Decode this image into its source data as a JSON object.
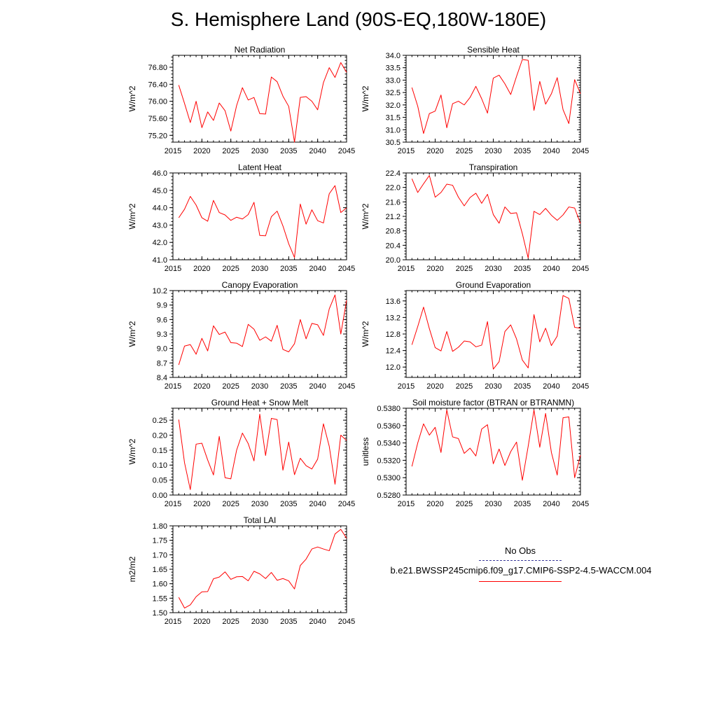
{
  "title": "S. Hemisphere Land (90S-EQ,180W-180E)",
  "legend": {
    "obs_label": "No Obs",
    "case_label": "b.e21.BWSSP245cmip6.f09_g17.CMIP6-SSP2-4.5-WACCM.004",
    "case_color": "#ff0000",
    "obs_color": "#3b3b9b"
  },
  "chart_data": [
    {
      "type": "line",
      "title": "Net Radiation",
      "ylabel": "W/m^2",
      "xlim": [
        2015,
        2045
      ],
      "ylim": [
        75.04,
        77.08
      ],
      "xticks": [
        "2015",
        "2020",
        "2025",
        "2030",
        "2035",
        "2040",
        "2045"
      ],
      "yticks": [
        "75.20",
        "75.60",
        "76.00",
        "76.40",
        "76.80"
      ],
      "x": [
        2016,
        2017,
        2018,
        2019,
        2020,
        2021,
        2022,
        2023,
        2024,
        2025,
        2026,
        2027,
        2028,
        2029,
        2030,
        2031,
        2032,
        2033,
        2034,
        2035,
        2036,
        2037,
        2038,
        2039,
        2040,
        2041,
        2042,
        2043,
        2044,
        2045
      ],
      "series": [
        {
          "color": "#ff0000",
          "values": [
            76.38,
            75.95,
            75.5,
            76.0,
            75.38,
            75.75,
            75.55,
            75.96,
            75.78,
            75.3,
            75.9,
            76.32,
            76.03,
            76.09,
            75.71,
            75.7,
            76.57,
            76.46,
            76.12,
            75.88,
            75.04,
            76.09,
            76.11,
            76.0,
            75.8,
            76.44,
            76.79,
            76.56,
            76.91,
            76.68
          ]
        }
      ]
    },
    {
      "type": "line",
      "title": "Sensible Heat",
      "ylabel": "W/m^2",
      "xlim": [
        2015,
        2045
      ],
      "ylim": [
        30.5,
        34.0
      ],
      "xticks": [
        "2015",
        "2020",
        "2025",
        "2030",
        "2035",
        "2040",
        "2045"
      ],
      "yticks": [
        "30.5",
        "31.0",
        "31.5",
        "32.0",
        "32.5",
        "33.0",
        "33.5",
        "34.0"
      ],
      "x": [
        2016,
        2017,
        2018,
        2019,
        2020,
        2021,
        2022,
        2023,
        2024,
        2025,
        2026,
        2027,
        2028,
        2029,
        2030,
        2031,
        2032,
        2033,
        2034,
        2035,
        2036,
        2037,
        2038,
        2039,
        2040,
        2041,
        2042,
        2043,
        2044,
        2045
      ],
      "series": [
        {
          "color": "#ff0000",
          "values": [
            32.7,
            31.95,
            30.85,
            31.65,
            31.75,
            32.4,
            31.08,
            32.05,
            32.15,
            32.0,
            32.3,
            32.75,
            32.25,
            31.67,
            33.08,
            33.2,
            32.85,
            32.42,
            33.15,
            33.83,
            33.8,
            31.78,
            32.95,
            32.03,
            32.45,
            33.1,
            31.81,
            31.25,
            33.02,
            32.45
          ]
        }
      ]
    },
    {
      "type": "line",
      "title": "Latent Heat",
      "ylabel": "W/m^2",
      "xlim": [
        2015,
        2045
      ],
      "ylim": [
        41.0,
        46.0
      ],
      "xticks": [
        "2015",
        "2020",
        "2025",
        "2030",
        "2035",
        "2040",
        "2045"
      ],
      "yticks": [
        "41.0",
        "42.0",
        "43.0",
        "44.0",
        "45.0",
        "46.0"
      ],
      "x": [
        2016,
        2017,
        2018,
        2019,
        2020,
        2021,
        2022,
        2023,
        2024,
        2025,
        2026,
        2027,
        2028,
        2029,
        2030,
        2031,
        2032,
        2033,
        2034,
        2035,
        2036,
        2037,
        2038,
        2039,
        2040,
        2041,
        2042,
        2043,
        2044,
        2045
      ],
      "series": [
        {
          "color": "#ff0000",
          "values": [
            43.42,
            43.91,
            44.65,
            44.15,
            43.42,
            43.22,
            44.42,
            43.72,
            43.58,
            43.27,
            43.45,
            43.35,
            43.6,
            44.31,
            42.4,
            42.38,
            43.48,
            43.8,
            42.95,
            41.92,
            41.13,
            44.21,
            43.05,
            43.88,
            43.25,
            43.12,
            44.8,
            45.27,
            43.72,
            43.99
          ]
        }
      ]
    },
    {
      "type": "line",
      "title": "Transpiration",
      "ylabel": "W/m^2",
      "xlim": [
        2015,
        2045
      ],
      "ylim": [
        20.0,
        22.4
      ],
      "xticks": [
        "2015",
        "2020",
        "2025",
        "2030",
        "2035",
        "2040",
        "2045"
      ],
      "yticks": [
        "20.0",
        "20.4",
        "20.8",
        "21.2",
        "21.6",
        "22.0",
        "22.4"
      ],
      "x": [
        2016,
        2017,
        2018,
        2019,
        2020,
        2021,
        2022,
        2023,
        2024,
        2025,
        2026,
        2027,
        2028,
        2029,
        2030,
        2031,
        2032,
        2033,
        2034,
        2035,
        2036,
        2037,
        2038,
        2039,
        2040,
        2041,
        2042,
        2043,
        2044,
        2045
      ],
      "series": [
        {
          "color": "#ff0000",
          "values": [
            22.24,
            21.86,
            22.1,
            22.33,
            21.73,
            21.86,
            22.09,
            22.06,
            21.73,
            21.49,
            21.72,
            21.84,
            21.56,
            21.81,
            21.25,
            21.01,
            21.46,
            21.28,
            21.3,
            20.72,
            20.05,
            21.34,
            21.25,
            21.42,
            21.23,
            21.09,
            21.24,
            21.46,
            21.43,
            21.0
          ]
        }
      ]
    },
    {
      "type": "line",
      "title": "Canopy Evaporation",
      "ylabel": "W/m^2",
      "xlim": [
        2015,
        2045
      ],
      "ylim": [
        8.4,
        10.2
      ],
      "xticks": [
        "2015",
        "2020",
        "2025",
        "2030",
        "2035",
        "2040",
        "2045"
      ],
      "yticks": [
        "8.4",
        "8.7",
        "9.0",
        "9.3",
        "9.6",
        "9.9",
        "10.2"
      ],
      "x": [
        2016,
        2017,
        2018,
        2019,
        2020,
        2021,
        2022,
        2023,
        2024,
        2025,
        2026,
        2027,
        2028,
        2029,
        2030,
        2031,
        2032,
        2033,
        2034,
        2035,
        2036,
        2037,
        2038,
        2039,
        2040,
        2041,
        2042,
        2043,
        2044,
        2045
      ],
      "series": [
        {
          "color": "#ff0000",
          "values": [
            8.66,
            9.05,
            9.08,
            8.88,
            9.21,
            8.95,
            9.47,
            9.29,
            9.34,
            9.12,
            9.11,
            9.04,
            9.5,
            9.4,
            9.17,
            9.24,
            9.15,
            9.48,
            8.98,
            8.93,
            9.1,
            9.6,
            9.2,
            9.52,
            9.49,
            9.27,
            9.82,
            10.11,
            9.3,
            10.0
          ]
        }
      ]
    },
    {
      "type": "line",
      "title": "Ground Evaporation",
      "ylabel": "W/m^2",
      "xlim": [
        2015,
        2045
      ],
      "ylim": [
        11.75,
        13.85
      ],
      "xticks": [
        "2015",
        "2020",
        "2025",
        "2030",
        "2035",
        "2040",
        "2045"
      ],
      "yticks": [
        "12.0",
        "12.4",
        "12.8",
        "13.2",
        "13.6"
      ],
      "x": [
        2016,
        2017,
        2018,
        2019,
        2020,
        2021,
        2022,
        2023,
        2024,
        2025,
        2026,
        2027,
        2028,
        2029,
        2030,
        2031,
        2032,
        2033,
        2034,
        2035,
        2036,
        2037,
        2038,
        2039,
        2040,
        2041,
        2042,
        2043,
        2044,
        2045
      ],
      "series": [
        {
          "color": "#ff0000",
          "values": [
            12.54,
            12.98,
            13.45,
            12.93,
            12.47,
            12.39,
            12.86,
            12.38,
            12.48,
            12.63,
            12.61,
            12.49,
            12.53,
            13.1,
            11.95,
            12.13,
            12.86,
            13.02,
            12.68,
            12.17,
            11.98,
            13.27,
            12.61,
            12.94,
            12.52,
            12.75,
            13.73,
            13.66,
            12.96,
            12.94
          ]
        }
      ]
    },
    {
      "type": "line",
      "title": "Ground Heat + Snow Melt",
      "ylabel": "W/m^2",
      "xlim": [
        2015,
        2045
      ],
      "ylim": [
        0.0,
        0.29
      ],
      "xticks": [
        "2015",
        "2020",
        "2025",
        "2030",
        "2035",
        "2040",
        "2045"
      ],
      "yticks": [
        "0.00",
        "0.05",
        "0.10",
        "0.15",
        "0.20",
        "0.25"
      ],
      "x": [
        2016,
        2017,
        2018,
        2019,
        2020,
        2021,
        2022,
        2023,
        2024,
        2025,
        2026,
        2027,
        2028,
        2029,
        2030,
        2031,
        2032,
        2033,
        2034,
        2035,
        2036,
        2037,
        2038,
        2039,
        2040,
        2041,
        2042,
        2043,
        2044,
        2045
      ],
      "series": [
        {
          "color": "#ff0000",
          "values": [
            0.252,
            0.108,
            0.018,
            0.17,
            0.173,
            0.117,
            0.067,
            0.196,
            0.058,
            0.054,
            0.15,
            0.207,
            0.172,
            0.114,
            0.27,
            0.132,
            0.256,
            0.252,
            0.083,
            0.177,
            0.068,
            0.123,
            0.098,
            0.087,
            0.12,
            0.238,
            0.163,
            0.036,
            0.2,
            0.182
          ]
        }
      ]
    },
    {
      "type": "line",
      "title": "Soil moisture factor (BTRAN or BTRANMN)",
      "ylabel": "unitless",
      "xlim": [
        2015,
        2045
      ],
      "ylim": [
        0.528,
        0.538
      ],
      "xticks": [
        "2015",
        "2020",
        "2025",
        "2030",
        "2035",
        "2040",
        "2045"
      ],
      "yticks": [
        "0.5280",
        "0.5300",
        "0.5320",
        "0.5340",
        "0.5360",
        "0.5380"
      ],
      "x": [
        2016,
        2017,
        2018,
        2019,
        2020,
        2021,
        2022,
        2023,
        2024,
        2025,
        2026,
        2027,
        2028,
        2029,
        2030,
        2031,
        2032,
        2033,
        2034,
        2035,
        2036,
        2037,
        2038,
        2039,
        2040,
        2041,
        2042,
        2043,
        2044,
        2045
      ],
      "series": [
        {
          "color": "#ff0000",
          "values": [
            0.5313,
            0.534,
            0.5362,
            0.5349,
            0.5358,
            0.5329,
            0.5378,
            0.5347,
            0.5345,
            0.5328,
            0.5334,
            0.5325,
            0.5356,
            0.5361,
            0.5316,
            0.5333,
            0.5314,
            0.533,
            0.5341,
            0.5297,
            0.5336,
            0.5378,
            0.5335,
            0.5374,
            0.5329,
            0.5303,
            0.5369,
            0.537,
            0.53,
            0.5326
          ]
        }
      ]
    },
    {
      "type": "line",
      "title": "Total LAI",
      "ylabel": "m2/m2",
      "xlim": [
        2015,
        2045
      ],
      "ylim": [
        1.5,
        1.8
      ],
      "xticks": [
        "2015",
        "2020",
        "2025",
        "2030",
        "2035",
        "2040",
        "2045"
      ],
      "yticks": [
        "1.50",
        "1.55",
        "1.60",
        "1.65",
        "1.70",
        "1.75",
        "1.80"
      ],
      "x": [
        2016,
        2017,
        2018,
        2019,
        2020,
        2021,
        2022,
        2023,
        2024,
        2025,
        2026,
        2027,
        2028,
        2029,
        2030,
        2031,
        2032,
        2033,
        2034,
        2035,
        2036,
        2037,
        2038,
        2039,
        2040,
        2041,
        2042,
        2043,
        2044,
        2045
      ],
      "series": [
        {
          "color": "#ff0000",
          "values": [
            1.553,
            1.516,
            1.527,
            1.555,
            1.572,
            1.573,
            1.617,
            1.623,
            1.641,
            1.615,
            1.624,
            1.625,
            1.61,
            1.643,
            1.634,
            1.618,
            1.639,
            1.612,
            1.618,
            1.61,
            1.582,
            1.663,
            1.685,
            1.72,
            1.727,
            1.72,
            1.714,
            1.772,
            1.788,
            1.757
          ]
        }
      ]
    }
  ]
}
